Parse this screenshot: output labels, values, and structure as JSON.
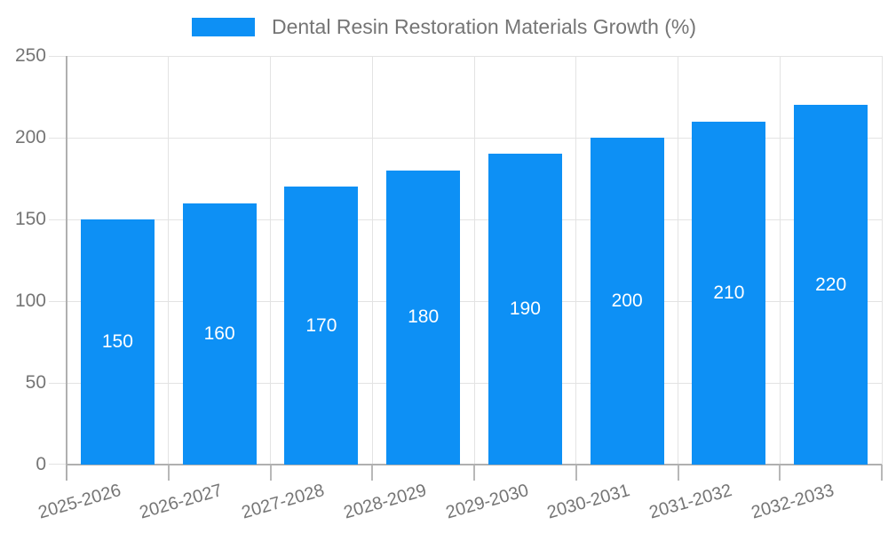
{
  "chart_data": {
    "type": "bar",
    "title": "Dental Resin Restoration Materials Growth (%)",
    "categories": [
      "2025-2026",
      "2026-2027",
      "2027-2028",
      "2028-2029",
      "2029-2030",
      "2030-2031",
      "2031-2032",
      "2032-2033"
    ],
    "values": [
      150,
      160,
      170,
      180,
      190,
      200,
      210,
      220
    ],
    "xlabel": "",
    "ylabel": "",
    "ylim": [
      0,
      250
    ],
    "y_ticks": [
      0,
      50,
      100,
      150,
      200,
      250
    ],
    "grid": true,
    "legend_position": "top-center",
    "bar_labels_position": "center-inside"
  },
  "colors": {
    "bar": "#0d90f5",
    "bar_label": "#ffffff",
    "grid": "#e3e3e3",
    "axis": "#b0b0b0",
    "tick_stub": "#b8b8b8",
    "tick_text": "#757575",
    "legend_text": "#757575",
    "background": "#ffffff"
  }
}
